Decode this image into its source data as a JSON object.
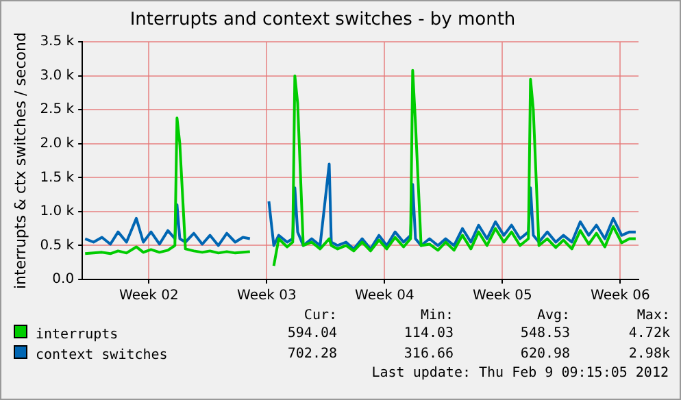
{
  "chart_data": {
    "type": "line",
    "title": "Interrupts and context switches - by month",
    "ylabel": "interrupts & ctx switches / second",
    "x": [
      "2012-01-05T05:00",
      "2012-01-05T17:00",
      "2012-01-06T05:00",
      "2012-01-06T17:00",
      "2012-01-07T04:00",
      "2012-01-07T16:00",
      "2012-01-08T06:00",
      "2012-01-08T16:00",
      "2012-01-09T03:00",
      "2012-01-09T15:00",
      "2012-01-10T03:00",
      "2012-01-10T13:00",
      "2012-01-10T16:00",
      "2012-01-10T20:00",
      "2012-01-11T04:00",
      "2012-01-11T16:00",
      "2012-01-12T04:00",
      "2012-01-12T15:00",
      "2012-01-13T03:00",
      "2012-01-13T15:00",
      "2012-01-14T03:00",
      "2012-01-14T14:00",
      "2012-01-15T00:00",
      "2012-01-15T14:00",
      "2012-01-16T03:00",
      "2012-01-16T10:00",
      "2012-01-16T17:00",
      "2012-01-17T05:00",
      "2012-01-17T13:00",
      "2012-01-17T16:00",
      "2012-01-17T20:00",
      "2012-01-18T04:00",
      "2012-01-18T16:00",
      "2012-01-19T04:00",
      "2012-01-19T17:00",
      "2012-01-19T20:00",
      "2012-01-20T05:00",
      "2012-01-20T17:00",
      "2012-01-21T04:00",
      "2012-01-21T16:00",
      "2012-01-22T04:00",
      "2012-01-22T16:00",
      "2012-01-23T03:00",
      "2012-01-23T15:00",
      "2012-01-24T03:00",
      "2012-01-24T13:00",
      "2012-01-24T16:00",
      "2012-01-24T20:00",
      "2012-01-25T04:00",
      "2012-01-25T16:00",
      "2012-01-26T04:00",
      "2012-01-26T15:00",
      "2012-01-27T03:00",
      "2012-01-27T15:00",
      "2012-01-28T03:00",
      "2012-01-28T14:00",
      "2012-01-29T02:00",
      "2012-01-29T14:00",
      "2012-01-30T02:00",
      "2012-01-30T13:00",
      "2012-01-31T01:00",
      "2012-01-31T13:00",
      "2012-01-31T16:00",
      "2012-01-31T20:00",
      "2012-02-01T04:00",
      "2012-02-01T16:00",
      "2012-02-02T04:00",
      "2012-02-02T15:00",
      "2012-02-03T03:00",
      "2012-02-03T15:00",
      "2012-02-04T03:00",
      "2012-02-04T14:00",
      "2012-02-05T02:00",
      "2012-02-05T14:00",
      "2012-02-06T02:00",
      "2012-02-06T13:00",
      "2012-02-06T22:00"
    ],
    "series": [
      {
        "name": "interrupts",
        "color": "#00cc00",
        "values": [
          380,
          390,
          400,
          380,
          420,
          390,
          480,
          400,
          440,
          400,
          430,
          500,
          2380,
          2000,
          450,
          420,
          400,
          420,
          390,
          410,
          390,
          400,
          410,
          null,
          null,
          200,
          600,
          480,
          550,
          3000,
          2600,
          500,
          550,
          450,
          600,
          500,
          450,
          500,
          420,
          550,
          420,
          580,
          450,
          620,
          480,
          600,
          3080,
          2300,
          500,
          520,
          430,
          550,
          430,
          650,
          450,
          700,
          500,
          750,
          550,
          700,
          500,
          600,
          2950,
          2500,
          500,
          600,
          470,
          580,
          450,
          720,
          520,
          680,
          480,
          780,
          540,
          600,
          600
        ]
      },
      {
        "name": "context switches",
        "color": "#0066b3",
        "values": [
          600,
          550,
          620,
          520,
          700,
          550,
          900,
          550,
          700,
          520,
          720,
          600,
          1100,
          600,
          550,
          680,
          520,
          650,
          500,
          680,
          550,
          620,
          600,
          null,
          1150,
          500,
          650,
          550,
          600,
          1350,
          700,
          500,
          600,
          500,
          1700,
          550,
          500,
          550,
          450,
          600,
          450,
          650,
          500,
          700,
          550,
          650,
          1400,
          600,
          500,
          600,
          500,
          600,
          500,
          750,
          550,
          800,
          600,
          850,
          650,
          800,
          600,
          700,
          1350,
          650,
          550,
          700,
          550,
          650,
          550,
          850,
          650,
          800,
          600,
          900,
          650,
          700,
          700
        ]
      }
    ],
    "xlim": [
      "2012-01-05T01:00",
      "2012-02-07T02:00"
    ],
    "xticks": [
      {
        "value": "2012-01-09",
        "label": "Week 02"
      },
      {
        "value": "2012-01-16",
        "label": "Week 03"
      },
      {
        "value": "2012-01-23",
        "label": "Week 04"
      },
      {
        "value": "2012-01-30",
        "label": "Week 05"
      },
      {
        "value": "2012-02-06",
        "label": "Week 06"
      }
    ],
    "ylim": [
      0,
      3500
    ],
    "yticks": [
      {
        "value": 0,
        "label": "0.0"
      },
      {
        "value": 500,
        "label": "0.5 k"
      },
      {
        "value": 1000,
        "label": "1.0 k"
      },
      {
        "value": 1500,
        "label": "1.5 k"
      },
      {
        "value": 2000,
        "label": "2.0 k"
      },
      {
        "value": 2500,
        "label": "2.5 k"
      },
      {
        "value": 3000,
        "label": "3.0 k"
      },
      {
        "value": 3500,
        "label": "3.5 k"
      }
    ],
    "grid": true,
    "legend": "bottom",
    "marker": "none",
    "line_style": "solid",
    "annotations": [
      "Cur:",
      "Min:",
      "Avg:",
      "Max:",
      "594.04",
      "114.03",
      "548.53",
      "4.72k",
      "702.28",
      "316.66",
      "620.98",
      "2.98k",
      "Last update:  Thu Feb  9 09:15:05 2012"
    ]
  }
}
